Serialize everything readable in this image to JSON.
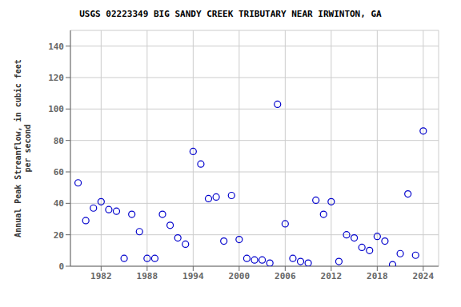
{
  "chart_data": {
    "type": "scatter",
    "title": "USGS 02223349 BIG SANDY CREEK TRIBUTARY NEAR IRWINTON, GA",
    "ylabel": "Annual Peak Streamflow, in cubic feet\nper second",
    "x": [
      1979,
      1980,
      1981,
      1982,
      1983,
      1984,
      1985,
      1986,
      1987,
      1988,
      1989,
      1990,
      1991,
      1992,
      1993,
      1994,
      1995,
      1996,
      1997,
      1998,
      1999,
      2000,
      2001,
      2002,
      2003,
      2004,
      2005,
      2006,
      2007,
      2008,
      2009,
      2010,
      2011,
      2012,
      2013,
      2014,
      2015,
      2016,
      2017,
      2018,
      2019,
      2020,
      2021,
      2022,
      2023,
      2024
    ],
    "values": [
      53,
      29,
      37,
      41,
      36,
      35,
      5,
      33,
      22,
      5,
      5,
      33,
      26,
      18,
      14,
      73,
      65,
      43,
      44,
      16,
      45,
      17,
      5,
      4,
      4,
      2,
      103,
      27,
      5,
      3,
      2,
      42,
      33,
      41,
      3,
      20,
      18,
      12,
      10,
      19,
      16,
      1,
      8,
      46,
      7,
      86
    ],
    "xlim": [
      1978,
      2026
    ],
    "ylim": [
      0,
      150
    ],
    "xticks": [
      1982,
      1988,
      1994,
      2000,
      2006,
      2012,
      2018,
      2024
    ],
    "yticks": [
      0,
      20,
      40,
      60,
      80,
      100,
      120,
      140
    ],
    "color": "#0000cc",
    "marker": "circle",
    "grid": true
  }
}
